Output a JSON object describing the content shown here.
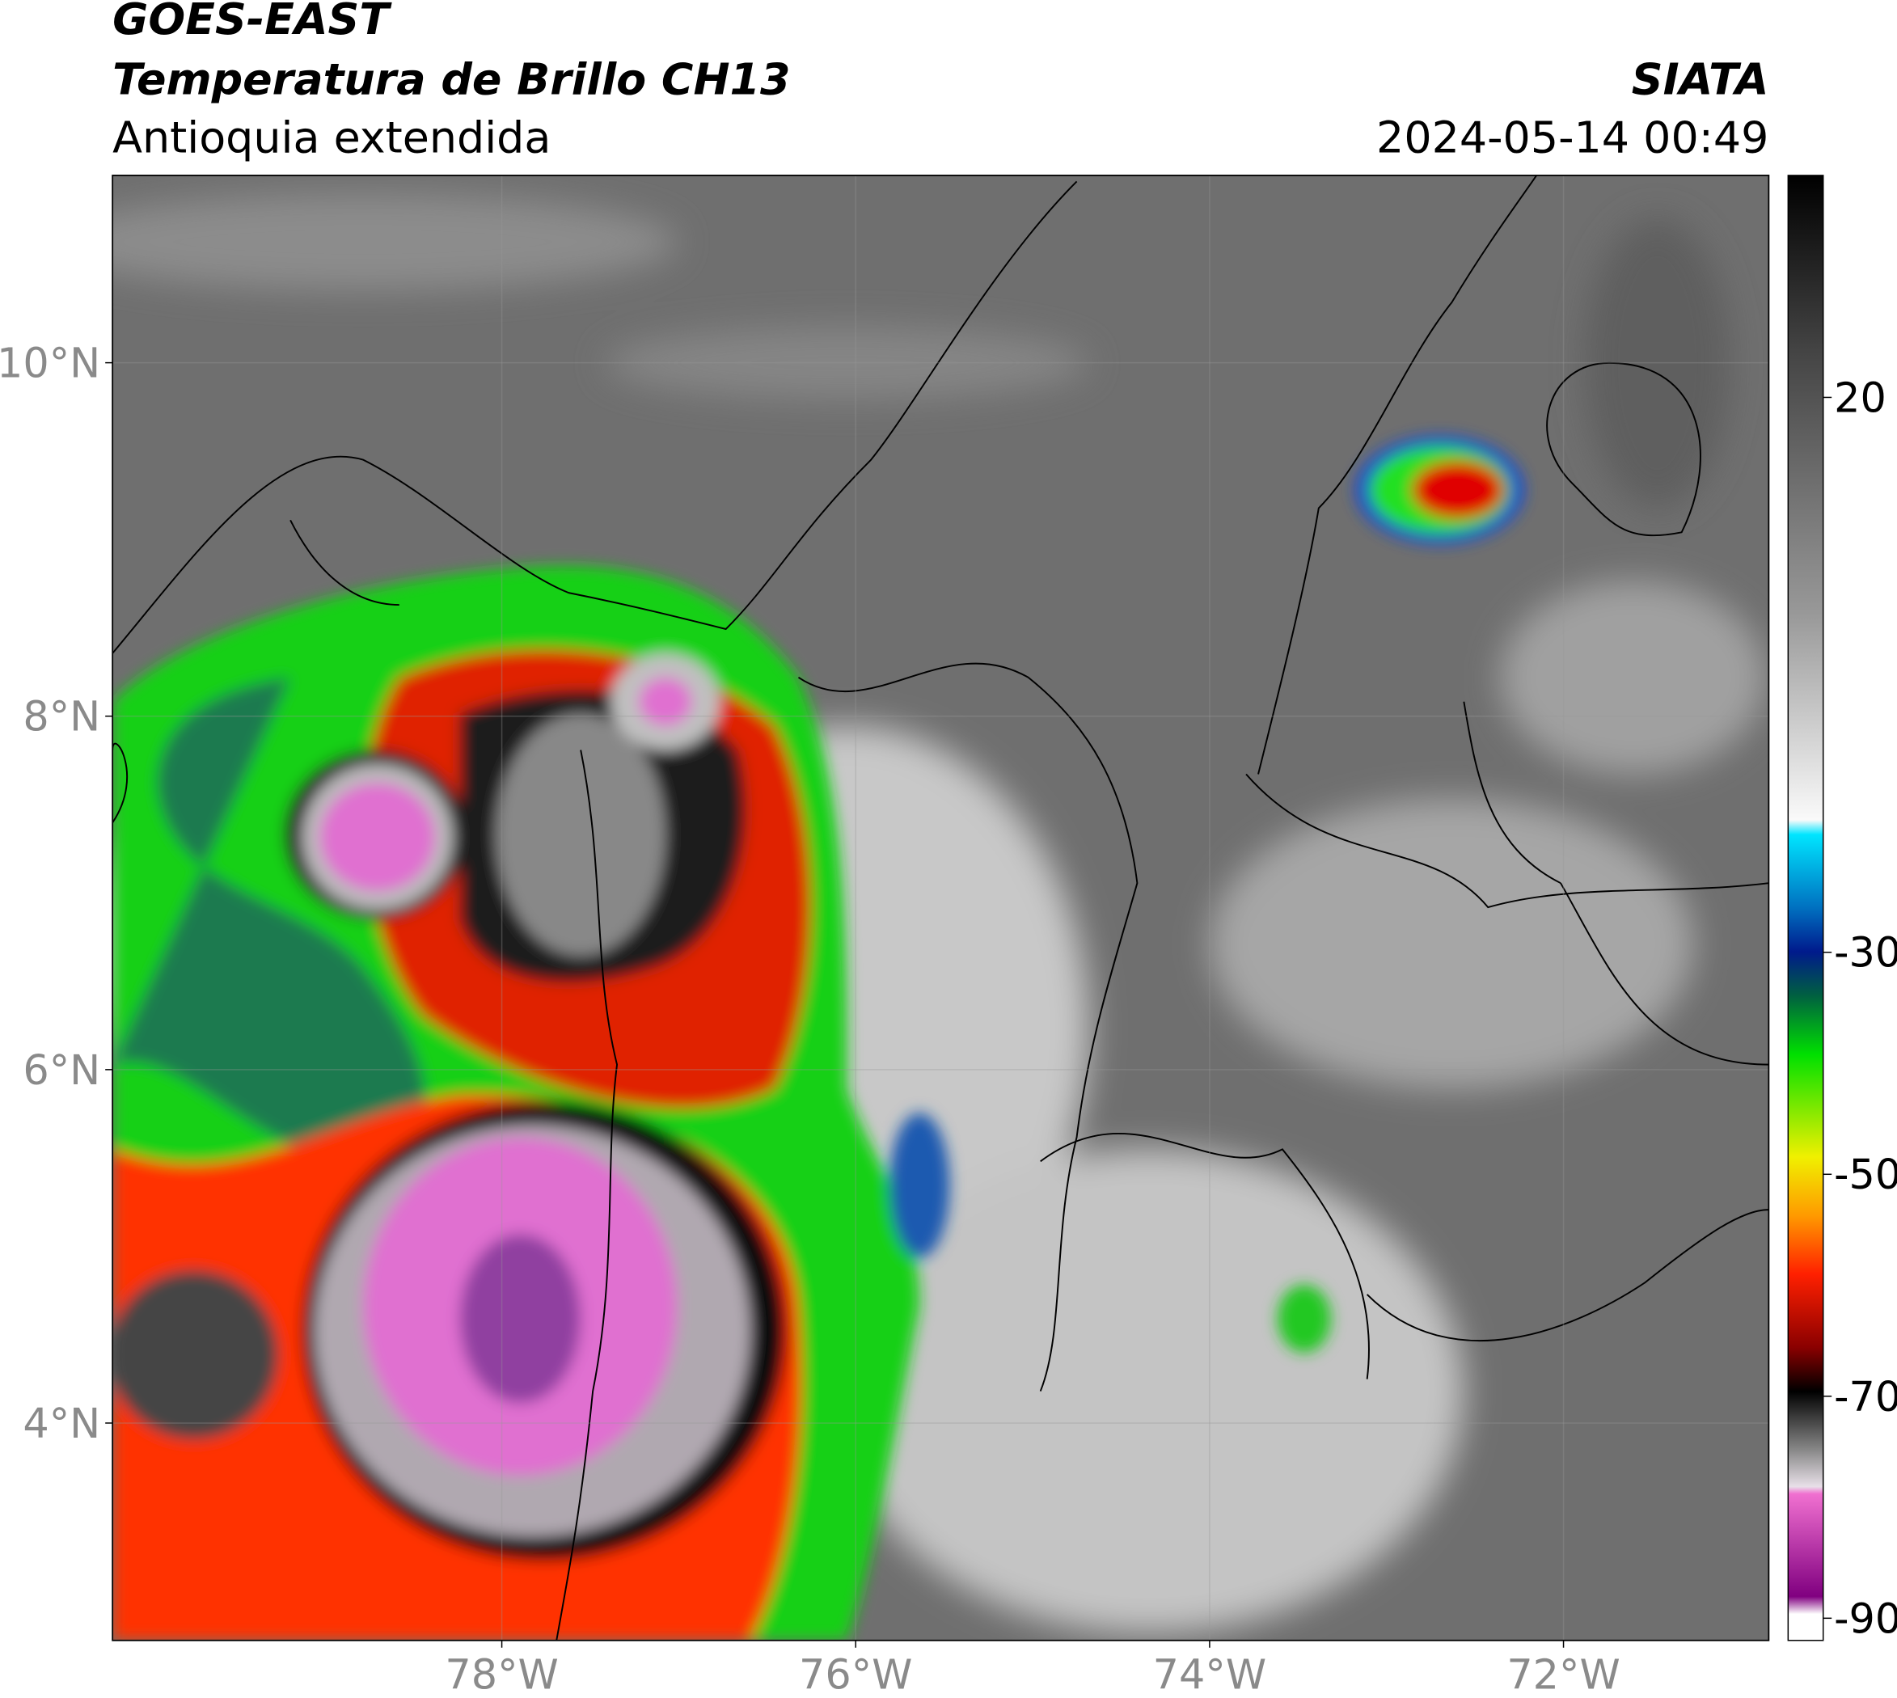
{
  "header": {
    "title": "GOES-EAST",
    "subtitle": "Temperatura de Brillo CH13",
    "region": "Antioquia extendida",
    "source": "SIATA",
    "datetime": "2024-05-14 00:49"
  },
  "map": {
    "lon_lim": [
      -80.2,
      -70.84
    ],
    "lat_lim": [
      2.77,
      11.06
    ],
    "lon_ticks": [
      {
        "value": -78,
        "label": "78°W"
      },
      {
        "value": -76,
        "label": "76°W"
      },
      {
        "value": -74,
        "label": "74°W"
      },
      {
        "value": -72,
        "label": "72°W"
      }
    ],
    "lat_ticks": [
      {
        "value": 4,
        "label": "4°N"
      },
      {
        "value": 6,
        "label": "6°N"
      },
      {
        "value": 8,
        "label": "8°N"
      },
      {
        "value": 10,
        "label": "10°N"
      }
    ]
  },
  "colorbar": {
    "lim": [
      -92,
      40
    ],
    "ticks": [
      20,
      -30,
      -50,
      -70,
      -90
    ]
  }
}
